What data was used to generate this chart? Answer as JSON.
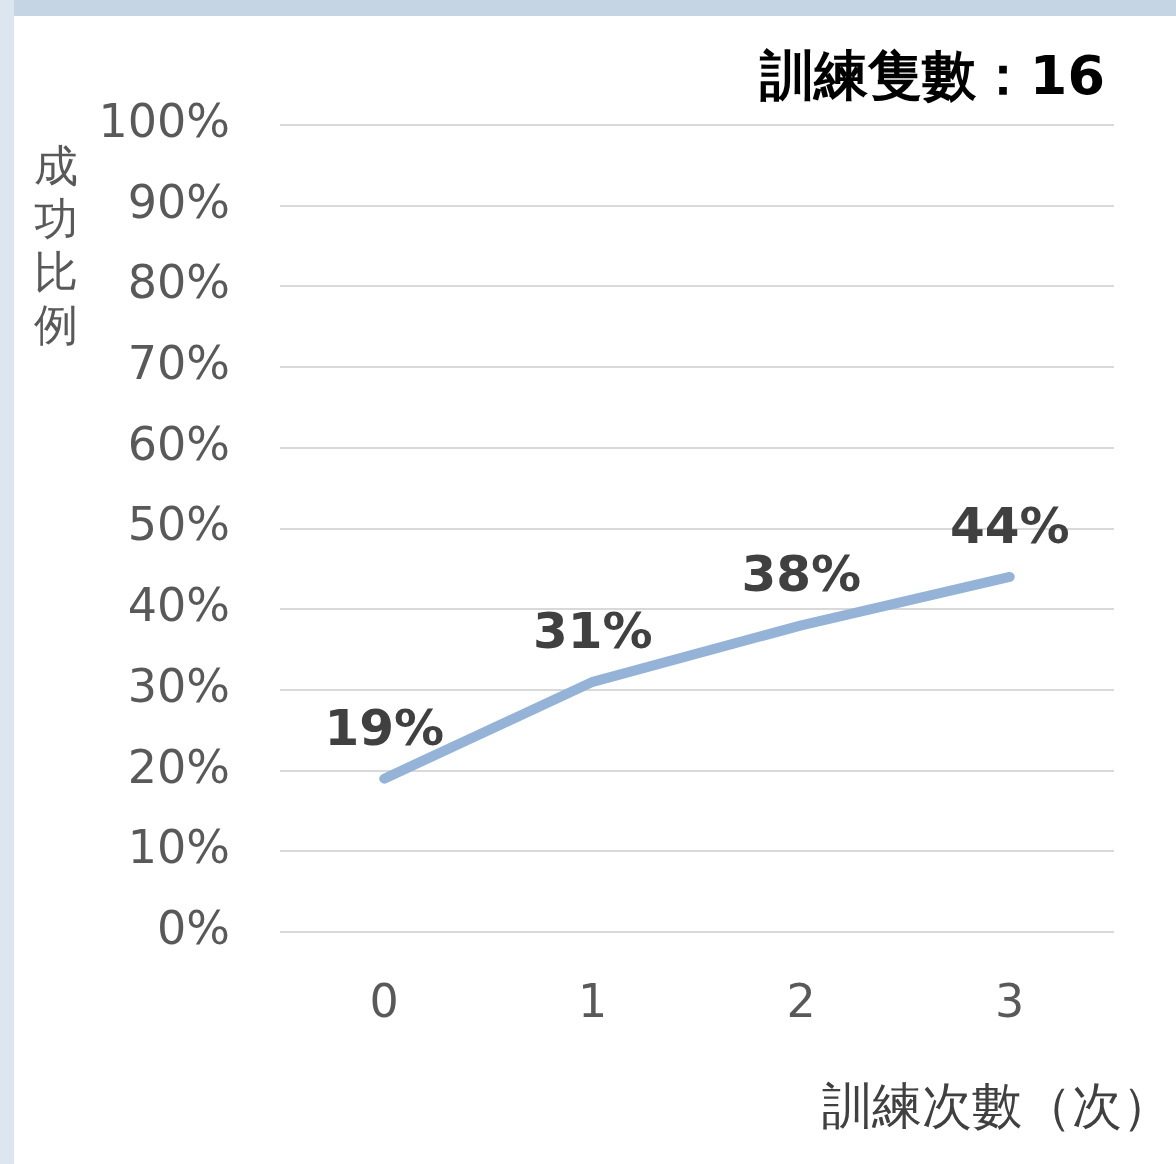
{
  "chart_data": {
    "type": "line",
    "title": "訓練隻數：16",
    "xlabel": "訓練次數（次）",
    "ylabel": "成功比例",
    "categories": [
      "0",
      "1",
      "2",
      "3"
    ],
    "series": [
      {
        "color": "#95b3d7",
        "values": [
          19,
          31,
          38,
          44
        ],
        "value_labels": [
          "19%",
          "31%",
          "38%",
          "44%"
        ]
      }
    ],
    "ylim": [
      0,
      100
    ],
    "yticks": [
      {
        "value": 0,
        "label": "0%"
      },
      {
        "value": 10,
        "label": "10%"
      },
      {
        "value": 20,
        "label": "20%"
      },
      {
        "value": 30,
        "label": "30%"
      },
      {
        "value": 40,
        "label": "40%"
      },
      {
        "value": 50,
        "label": "50%"
      },
      {
        "value": 60,
        "label": "60%"
      },
      {
        "value": 70,
        "label": "70%"
      },
      {
        "value": 80,
        "label": "80%"
      },
      {
        "value": 90,
        "label": "90%"
      },
      {
        "value": 100,
        "label": "100%"
      }
    ],
    "grid": "y",
    "legend": false,
    "marker": "none",
    "line_style": "solid"
  }
}
